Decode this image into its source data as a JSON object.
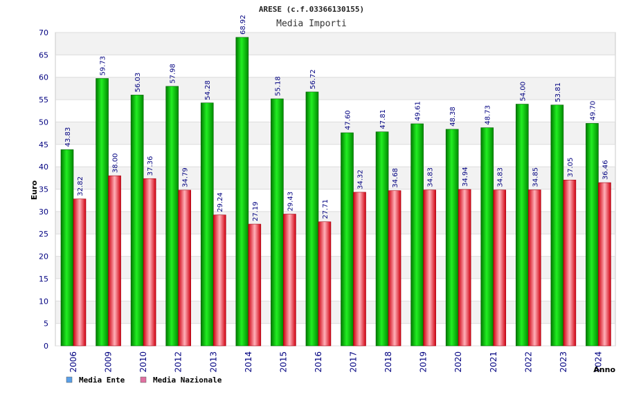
{
  "chart_data": {
    "type": "bar",
    "title": "ARESE (c.f.03366130155)",
    "subtitle": "Media Importi",
    "ylabel": "Euro",
    "xlabel": "Anno",
    "ylim": [
      0,
      70
    ],
    "yticks": [
      "0",
      "5",
      "10",
      "15",
      "20",
      "25",
      "30",
      "35",
      "40",
      "45",
      "50",
      "55",
      "60",
      "65",
      "70"
    ],
    "categories": [
      "2006",
      "2009",
      "2010",
      "2012",
      "2013",
      "2014",
      "2015",
      "2016",
      "2017",
      "2018",
      "2019",
      "2020",
      "2021",
      "2022",
      "2023",
      "2024"
    ],
    "series": [
      {
        "name": "Media Ente",
        "color": "#00c000",
        "legend_color": "#5aa0e8",
        "values": [
          43.83,
          59.73,
          56.03,
          57.98,
          54.28,
          68.92,
          55.18,
          56.72,
          47.6,
          47.81,
          49.61,
          48.38,
          48.73,
          54.0,
          53.81,
          49.7
        ],
        "labels": [
          "43.83",
          "59.73",
          "56.03",
          "57.98",
          "54.28",
          "68.92",
          "55.18",
          "56.72",
          "47.60",
          "47.81",
          "49.61",
          "48.38",
          "48.73",
          "54.00",
          "53.81",
          "49.70"
        ]
      },
      {
        "name": "Media Nazionale",
        "color": "#e81020",
        "legend_color": "#e070a0",
        "values": [
          32.82,
          38.0,
          37.36,
          34.79,
          29.24,
          27.19,
          29.43,
          27.71,
          34.32,
          34.68,
          34.83,
          34.94,
          34.83,
          34.85,
          37.05,
          36.46
        ],
        "labels": [
          "32.82",
          "38.00",
          "37.36",
          "34.79",
          "29.24",
          "27.19",
          "29.43",
          "27.71",
          "34.32",
          "34.68",
          "34.83",
          "34.94",
          "34.83",
          "34.85",
          "37.05",
          "36.46"
        ]
      }
    ],
    "grid": true,
    "legend_position": "bottom-left"
  }
}
